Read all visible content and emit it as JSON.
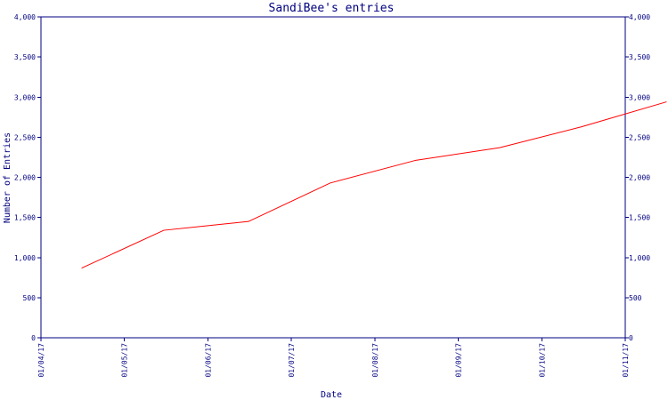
{
  "chart_data": {
    "type": "line",
    "title": "SandiBee's entries",
    "xlabel": "Date",
    "ylabel": "Number of Entries",
    "x_tick_labels": [
      "01/04/17",
      "01/05/17",
      "01/06/17",
      "01/07/17",
      "01/08/17",
      "01/09/17",
      "01/10/17",
      "01/11/17"
    ],
    "y_tick_labels": [
      "0",
      "500",
      "1,000",
      "1,500",
      "2,000",
      "2,500",
      "3,000",
      "3,500",
      "4,000"
    ],
    "ylim": [
      0,
      4000
    ],
    "xlim": [
      "2017-04-01",
      "2017-11-01"
    ],
    "grid": false,
    "legend": "none",
    "colors": {
      "line": "#ff0000",
      "axes": "#000080",
      "text": "#000080"
    },
    "series": [
      {
        "x": [
          "2017-04-16",
          "2017-05-16",
          "2017-06-16",
          "2017-07-16",
          "2017-08-16",
          "2017-09-16",
          "2017-10-16",
          "2017-11-16"
        ],
        "values": [
          870,
          1340,
          1450,
          1930,
          2210,
          2370,
          2630,
          2940
        ]
      }
    ]
  }
}
